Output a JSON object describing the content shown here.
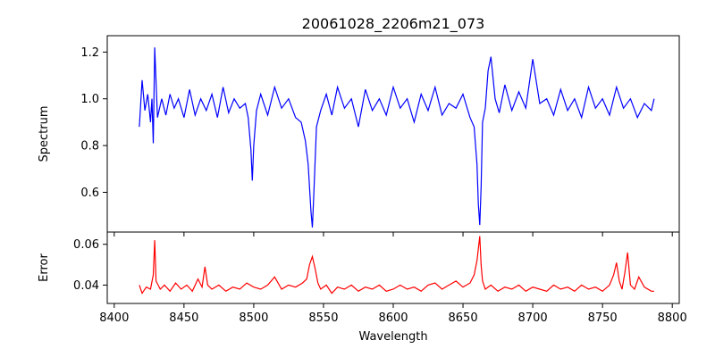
{
  "chart_data": [
    {
      "type": "line",
      "title": "20061028_2206m21_073",
      "ylabel": "Spectrum",
      "xlabel": "",
      "xlim": [
        8395,
        8805
      ],
      "ylim": [
        0.43,
        1.27
      ],
      "xticks": [
        8400,
        8450,
        8500,
        8550,
        8600,
        8650,
        8700,
        8750,
        8800
      ],
      "yticks": [
        0.6,
        0.8,
        1.0,
        1.2
      ],
      "ytick_labels": [
        "0.6",
        "0.8",
        "1.0",
        "1.2"
      ],
      "grid": false,
      "series": [
        {
          "color": "#0000ff",
          "x": [
            8418,
            8420,
            8422,
            8424,
            8426,
            8427,
            8428,
            8429,
            8431,
            8434,
            8437,
            8440,
            8443,
            8446,
            8450,
            8454,
            8458,
            8462,
            8466,
            8470,
            8474,
            8478,
            8482,
            8486,
            8490,
            8494,
            8496,
            8498,
            8499,
            8500,
            8502,
            8505,
            8510,
            8515,
            8520,
            8525,
            8530,
            8534,
            8537,
            8539,
            8541,
            8542,
            8543,
            8545,
            8548,
            8552,
            8556,
            8560,
            8565,
            8570,
            8575,
            8580,
            8585,
            8590,
            8595,
            8600,
            8605,
            8610,
            8615,
            8620,
            8625,
            8630,
            8635,
            8640,
            8645,
            8650,
            8655,
            8658,
            8660,
            8661,
            8662,
            8663,
            8664,
            8666,
            8668,
            8670,
            8673,
            8676,
            8680,
            8685,
            8690,
            8695,
            8700,
            8705,
            8710,
            8715,
            8720,
            8725,
            8730,
            8735,
            8740,
            8745,
            8750,
            8755,
            8760,
            8765,
            8770,
            8775,
            8780,
            8785,
            8787
          ],
          "y": [
            0.88,
            1.08,
            0.95,
            1.02,
            0.9,
            1.0,
            0.81,
            1.22,
            0.92,
            1.0,
            0.93,
            1.02,
            0.96,
            1.0,
            0.92,
            1.04,
            0.93,
            1.0,
            0.95,
            1.02,
            0.92,
            1.05,
            0.94,
            1.0,
            0.96,
            0.98,
            0.92,
            0.78,
            0.65,
            0.8,
            0.95,
            1.02,
            0.93,
            1.05,
            0.96,
            1.0,
            0.92,
            0.9,
            0.82,
            0.72,
            0.52,
            0.45,
            0.58,
            0.88,
            0.95,
            1.02,
            0.93,
            1.05,
            0.96,
            1.0,
            0.88,
            1.04,
            0.95,
            1.0,
            0.93,
            1.05,
            0.96,
            1.0,
            0.9,
            1.02,
            0.95,
            1.05,
            0.93,
            0.98,
            0.96,
            1.02,
            0.92,
            0.88,
            0.72,
            0.55,
            0.46,
            0.62,
            0.9,
            0.96,
            1.12,
            1.18,
            1.0,
            0.94,
            1.06,
            0.95,
            1.03,
            0.96,
            1.17,
            0.98,
            1.0,
            0.93,
            1.04,
            0.95,
            1.0,
            0.92,
            1.05,
            0.96,
            1.0,
            0.93,
            1.05,
            0.96,
            1.0,
            0.92,
            0.98,
            0.95,
            1.0
          ]
        }
      ]
    },
    {
      "type": "line",
      "title": "",
      "ylabel": "Error",
      "xlabel": "Wavelength",
      "xlim": [
        8395,
        8805
      ],
      "ylim": [
        0.031,
        0.066
      ],
      "xticks": [
        8400,
        8450,
        8500,
        8550,
        8600,
        8650,
        8700,
        8750,
        8800
      ],
      "xtick_labels": [
        "8400",
        "8450",
        "8500",
        "8550",
        "8600",
        "8650",
        "8700",
        "8750",
        "8800"
      ],
      "yticks": [
        0.04,
        0.06
      ],
      "ytick_labels": [
        "0.04",
        "0.06"
      ],
      "grid": false,
      "series": [
        {
          "color": "#ff0000",
          "x": [
            8418,
            8420,
            8423,
            8426,
            8428,
            8429,
            8430,
            8433,
            8436,
            8440,
            8444,
            8448,
            8452,
            8456,
            8460,
            8463,
            8465,
            8467,
            8470,
            8475,
            8480,
            8485,
            8490,
            8495,
            8500,
            8505,
            8510,
            8515,
            8520,
            8525,
            8530,
            8535,
            8538,
            8540,
            8542,
            8544,
            8546,
            8548,
            8552,
            8556,
            8560,
            8565,
            8570,
            8575,
            8580,
            8585,
            8590,
            8595,
            8600,
            8605,
            8610,
            8615,
            8620,
            8625,
            8630,
            8635,
            8640,
            8645,
            8650,
            8655,
            8658,
            8660,
            8662,
            8663,
            8664,
            8666,
            8670,
            8675,
            8680,
            8685,
            8690,
            8695,
            8700,
            8705,
            8710,
            8715,
            8720,
            8725,
            8730,
            8735,
            8740,
            8745,
            8750,
            8755,
            8758,
            8760,
            8762,
            8764,
            8766,
            8768,
            8770,
            8773,
            8776,
            8780,
            8785,
            8787
          ],
          "y": [
            0.04,
            0.036,
            0.039,
            0.038,
            0.045,
            0.062,
            0.042,
            0.038,
            0.04,
            0.037,
            0.041,
            0.038,
            0.04,
            0.037,
            0.043,
            0.039,
            0.049,
            0.04,
            0.038,
            0.04,
            0.037,
            0.039,
            0.038,
            0.041,
            0.039,
            0.038,
            0.04,
            0.044,
            0.038,
            0.04,
            0.039,
            0.041,
            0.043,
            0.05,
            0.054,
            0.048,
            0.041,
            0.038,
            0.04,
            0.036,
            0.039,
            0.038,
            0.04,
            0.037,
            0.039,
            0.038,
            0.04,
            0.037,
            0.038,
            0.04,
            0.038,
            0.039,
            0.037,
            0.04,
            0.041,
            0.038,
            0.04,
            0.042,
            0.039,
            0.041,
            0.045,
            0.052,
            0.064,
            0.05,
            0.042,
            0.038,
            0.04,
            0.037,
            0.039,
            0.038,
            0.04,
            0.037,
            0.039,
            0.038,
            0.037,
            0.04,
            0.038,
            0.039,
            0.037,
            0.04,
            0.038,
            0.039,
            0.037,
            0.04,
            0.045,
            0.051,
            0.042,
            0.038,
            0.046,
            0.056,
            0.04,
            0.038,
            0.044,
            0.039,
            0.037,
            0.037
          ]
        }
      ]
    }
  ]
}
